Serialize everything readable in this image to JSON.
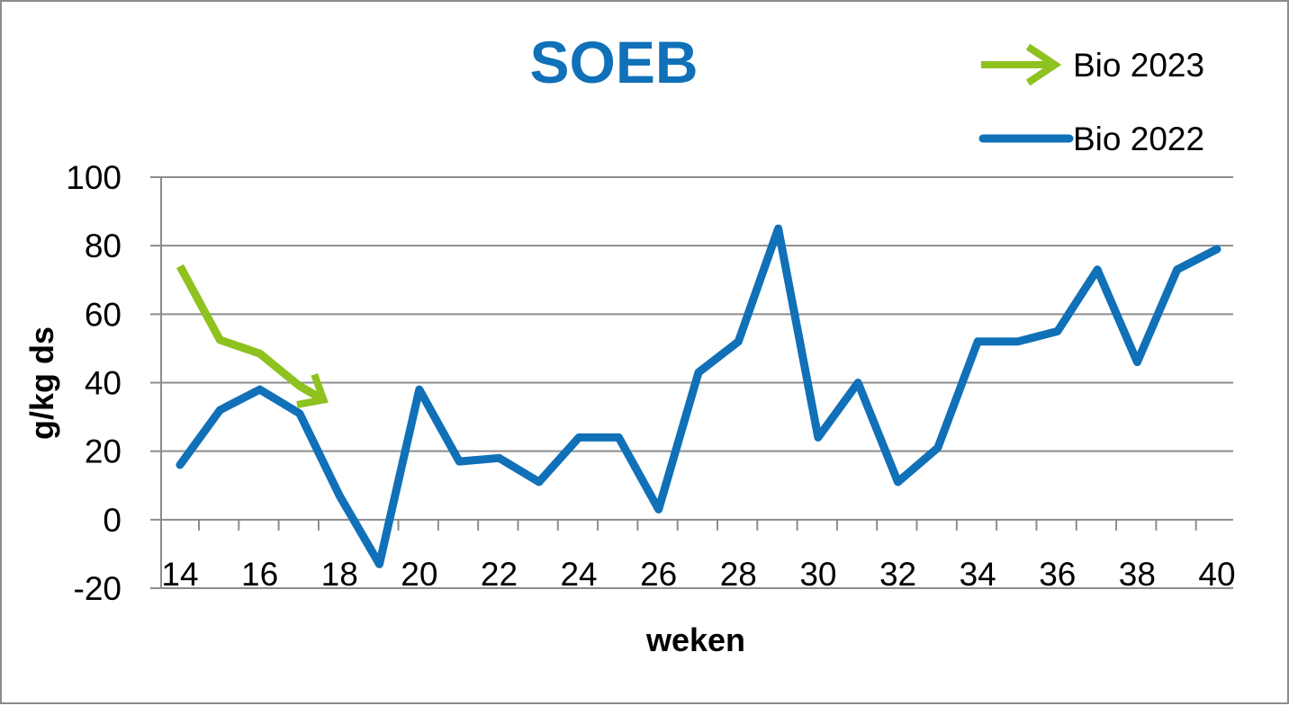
{
  "chart_data": {
    "type": "line",
    "title": "SOEB",
    "xlabel": "weken",
    "ylabel": "g/kg ds",
    "xlim": [
      14,
      40
    ],
    "ylim": [
      -20,
      100
    ],
    "x_ticks": [
      14,
      16,
      18,
      20,
      22,
      24,
      26,
      28,
      30,
      32,
      34,
      36,
      38,
      40
    ],
    "y_ticks": [
      -20,
      0,
      20,
      40,
      60,
      80,
      100
    ],
    "grid": "horizontal",
    "legend_position": "top-right",
    "series": [
      {
        "name": "Bio 2022",
        "color": "#1070b8",
        "x": [
          14,
          15,
          16,
          17,
          18,
          19,
          20,
          21,
          22,
          23,
          24,
          25,
          26,
          27,
          28,
          29,
          30,
          31,
          32,
          33,
          34,
          35,
          36,
          37,
          38,
          39,
          40
        ],
        "y": [
          16,
          32,
          38,
          31,
          7,
          -13,
          38,
          17,
          18,
          11,
          24,
          24,
          3,
          43,
          52,
          85,
          24,
          40,
          11,
          21,
          52,
          52,
          55,
          73,
          46,
          73,
          79
        ]
      },
      {
        "name": "Bio 2023",
        "color": "#8dc21f",
        "marker": "arrow",
        "x": [
          14,
          15,
          16,
          17,
          17.6
        ],
        "y": [
          74,
          52.5,
          48.5,
          39,
          35
        ]
      }
    ]
  },
  "colors": {
    "title": "#1070b8",
    "grid": "#8c8c8c",
    "axis": "#8c8c8c",
    "frame": "#8c8c8c"
  }
}
